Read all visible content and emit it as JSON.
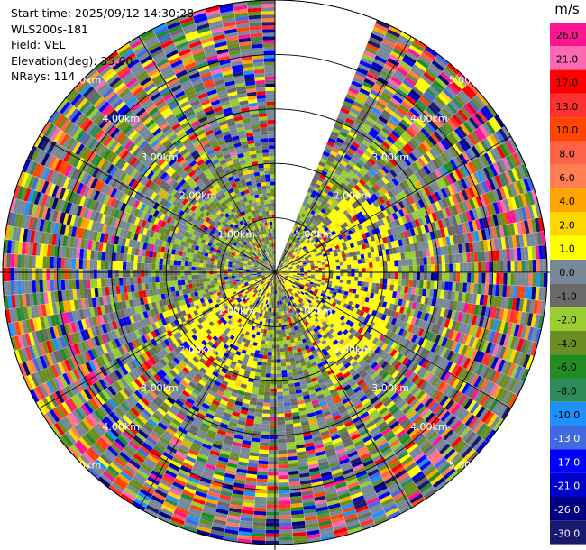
{
  "header": {
    "start_time": "Start time: 2025/09/12 14:30:28",
    "instrument": "WLS200s-181",
    "field": "Field: VEL",
    "elevation": "Elevation(deg): 35.00",
    "nrays": "NRays: 114"
  },
  "colorbar": {
    "unit": "m/s",
    "ticks": [
      "26.0",
      "21.0",
      "17.0",
      "13.0",
      "10.0",
      "8.0",
      "6.0",
      "4.0",
      "2.0",
      "1.0",
      "0.0",
      "-1.0",
      "-2.0",
      "-4.0",
      "-6.0",
      "-8.0",
      "-10.0",
      "-13.0",
      "-17.0",
      "-21.0",
      "-26.0",
      "-30.0"
    ],
    "colors": [
      "#ff1493",
      "#ff69b4",
      "#ff0000",
      "#ff3030",
      "#ff4500",
      "#ff6347",
      "#ff7f50",
      "#ffa500",
      "#ffd700",
      "#ffff00",
      "#778899",
      "#696969",
      "#9acd32",
      "#6b8e23",
      "#228b22",
      "#2e8b57",
      "#1e90ff",
      "#4169e1",
      "#0000ff",
      "#0000cd",
      "#000080",
      "#191970"
    ]
  },
  "chart_data": {
    "type": "ppi",
    "field": "VEL",
    "units": "m/s",
    "elevation_deg": 35.0,
    "n_rays": 114,
    "range_rings_km": [
      1,
      2,
      3,
      4,
      5
    ],
    "ring_labels": [
      "1.00km",
      "2.00km",
      "3.00km",
      "4.00km",
      "5.00km"
    ],
    "azimuth_gap_deg": [
      0,
      22
    ],
    "value_range": [
      -30,
      30
    ]
  }
}
